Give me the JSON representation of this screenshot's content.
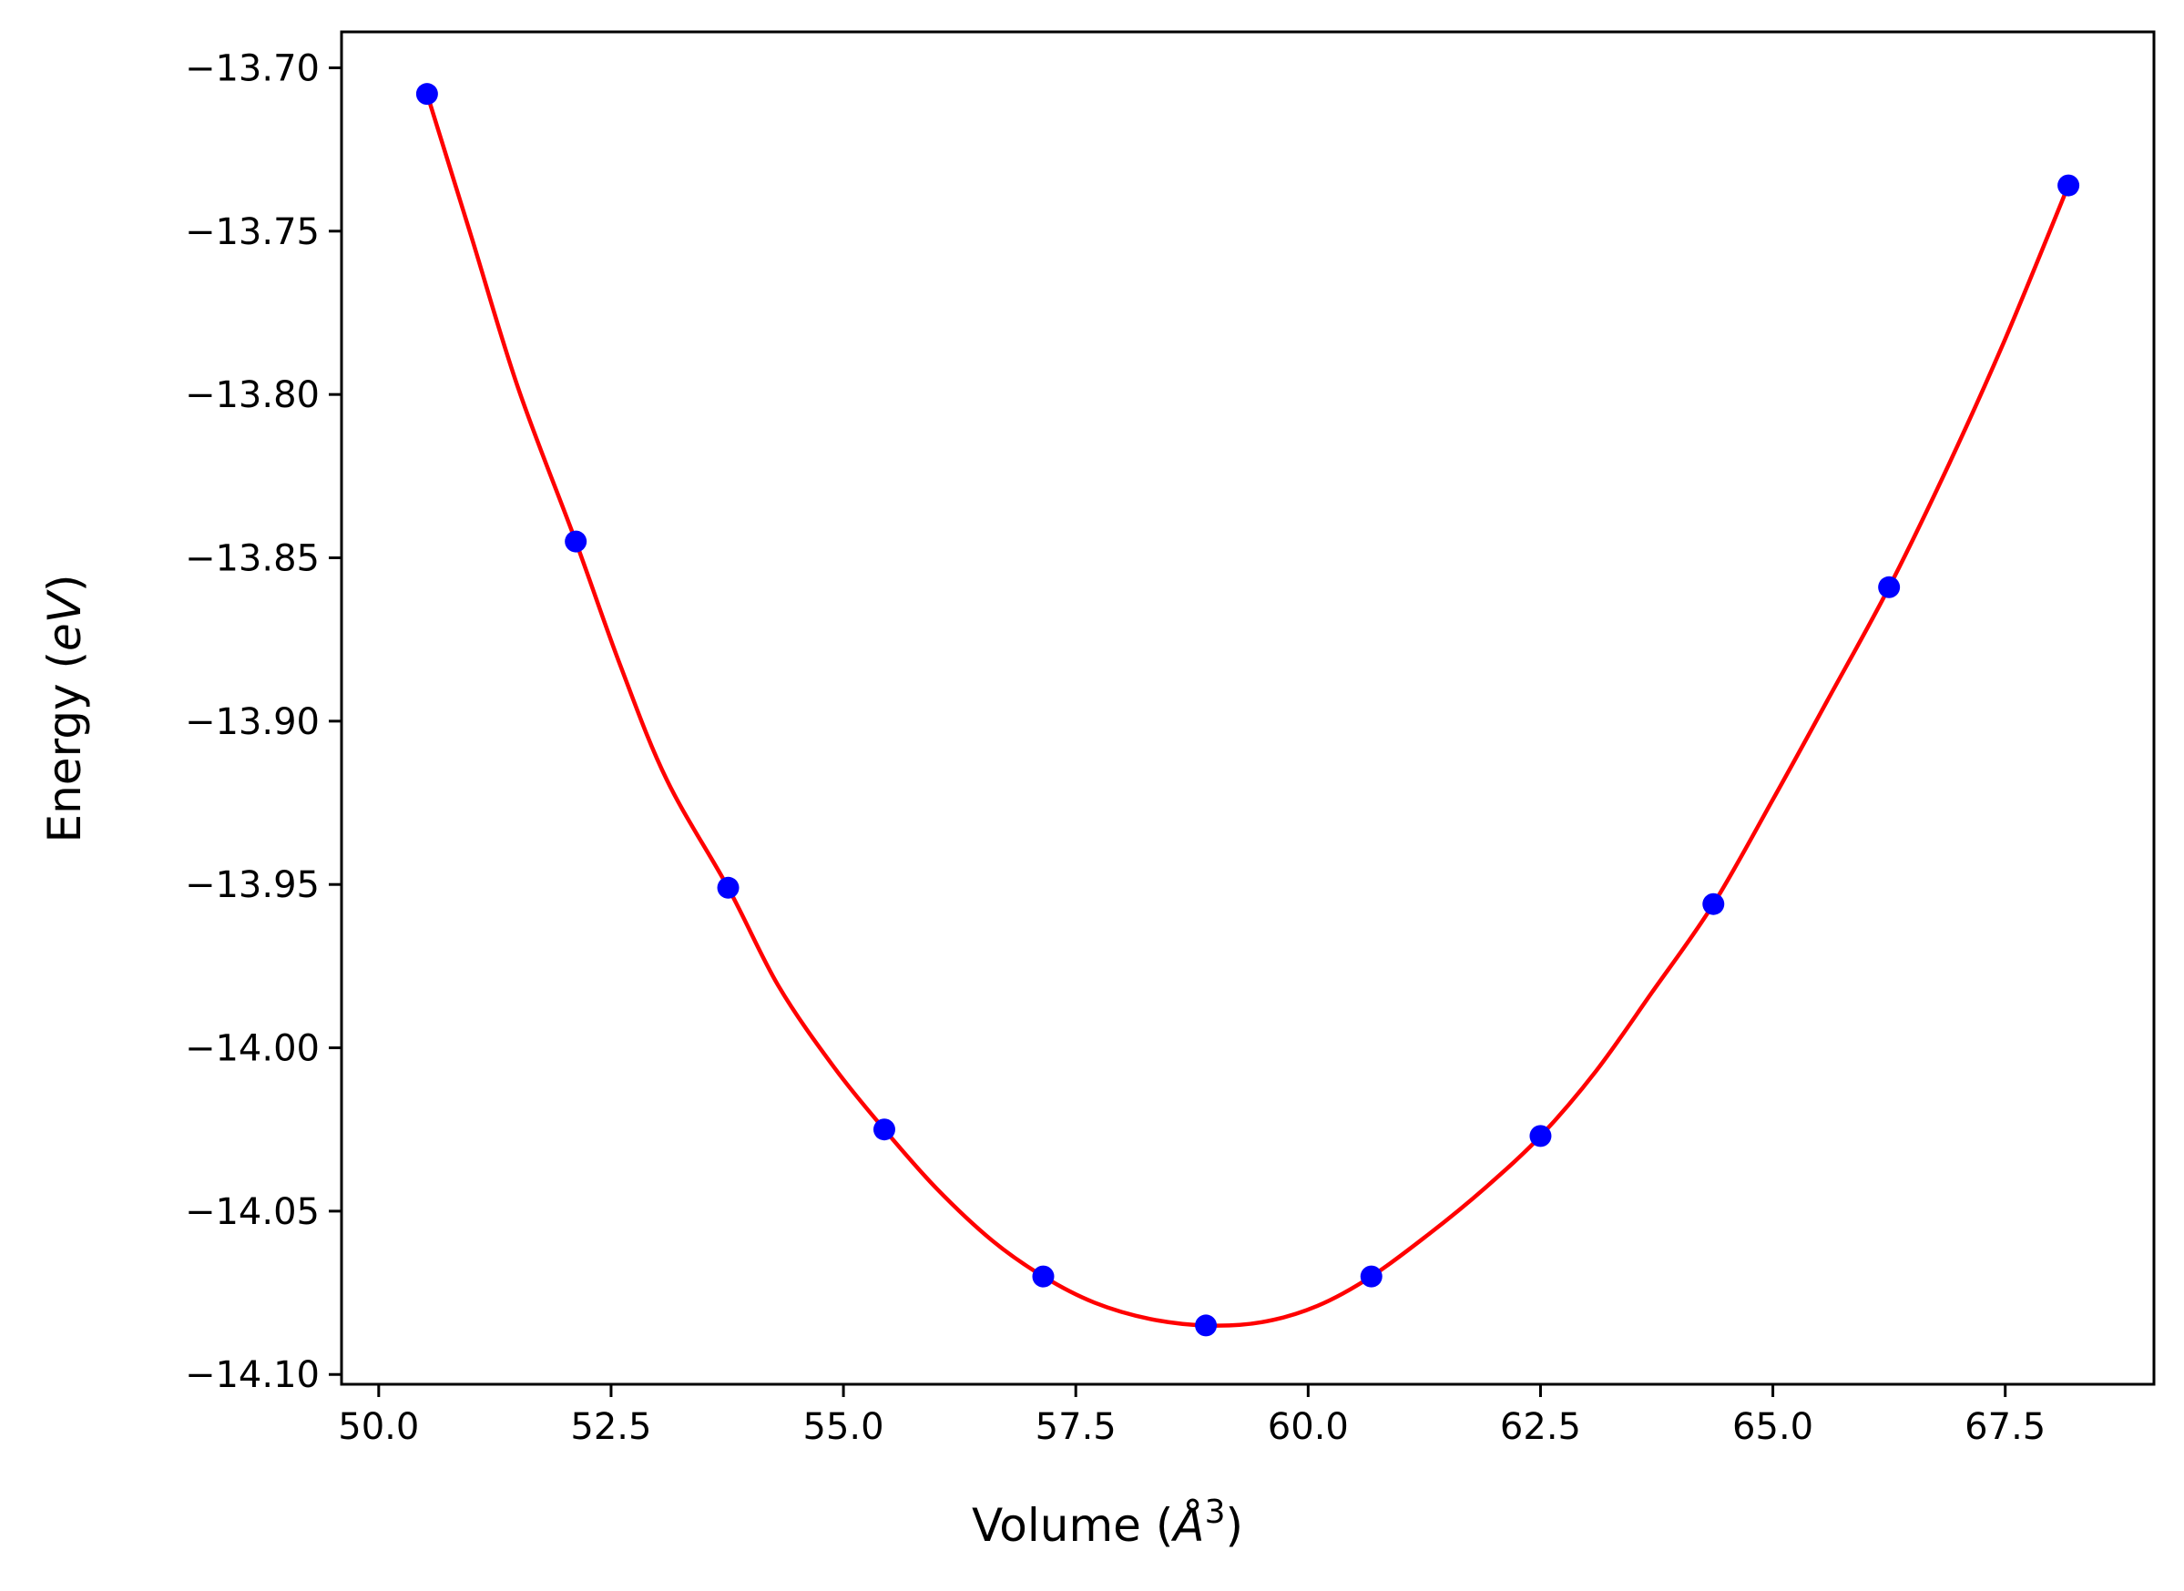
{
  "chart_data": {
    "type": "line",
    "title": "",
    "xlabel": "Volume",
    "xlabel_unit": "Å",
    "xlabel_unit_exp": "3",
    "ylabel": "Energy",
    "ylabel_unit": "eV",
    "xlim": [
      49.6,
      69.1
    ],
    "ylim": [
      -14.103,
      -13.689
    ],
    "grid": false,
    "legend": "none",
    "x_ticks": [
      50.0,
      52.5,
      55.0,
      57.5,
      60.0,
      62.5,
      65.0,
      67.5
    ],
    "x_tick_labels": [
      "50.0",
      "52.5",
      "55.0",
      "57.5",
      "60.0",
      "62.5",
      "65.0",
      "67.5"
    ],
    "y_ticks": [
      -13.7,
      -13.75,
      -13.8,
      -13.85,
      -13.9,
      -13.95,
      -14.0,
      -14.05,
      -14.1
    ],
    "y_tick_labels": [
      "−13.70",
      "−13.75",
      "−13.80",
      "−13.85",
      "−13.90",
      "−13.95",
      "−14.00",
      "−14.05",
      "−14.10"
    ],
    "series": [
      {
        "kind": "scatter",
        "color": "#0000ff",
        "x": [
          50.52,
          52.12,
          53.76,
          55.44,
          57.15,
          58.9,
          60.68,
          62.5,
          64.36,
          66.25,
          68.18
        ],
        "y": [
          -13.708,
          -13.845,
          -13.951,
          -14.025,
          -14.07,
          -14.085,
          -14.07,
          -14.027,
          -13.956,
          -13.859,
          -13.736
        ]
      },
      {
        "kind": "line",
        "color": "#ff0000",
        "x": [
          50.52,
          51.0,
          51.5,
          52.12,
          52.6,
          53.1,
          53.76,
          54.3,
          54.9,
          55.44,
          56.0,
          56.6,
          57.15,
          57.7,
          58.3,
          58.9,
          59.5,
          60.1,
          60.68,
          61.3,
          61.9,
          62.5,
          63.1,
          63.7,
          64.36,
          65.0,
          65.6,
          66.25,
          66.9,
          67.5,
          68.18
        ],
        "y": [
          -13.708,
          -13.752,
          -13.798,
          -13.845,
          -13.883,
          -13.918,
          -13.951,
          -13.981,
          -14.006,
          -14.025,
          -14.043,
          -14.059,
          -14.07,
          -14.078,
          -14.083,
          -14.085,
          -14.084,
          -14.079,
          -14.07,
          -14.057,
          -14.043,
          -14.027,
          -14.007,
          -13.983,
          -13.956,
          -13.924,
          -13.893,
          -13.859,
          -13.821,
          -13.783,
          -13.736
        ]
      }
    ]
  }
}
